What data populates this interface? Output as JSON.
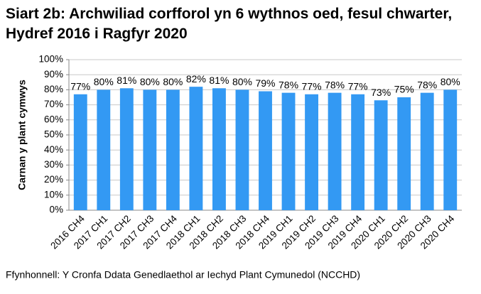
{
  "chart_data": {
    "type": "bar",
    "title": "Siart 2b: Archwiliad corfforol yn 6 wythnos oed, fesul chwarter, Hydref 2016 i Ragfyr 2020",
    "y_label": "Carnan y plant cymwys",
    "source": "Ffynhonnell: Y Cronfa Ddata Genedlaethol ar Iechyd Plant Cymunedol (NCCHD)",
    "categories": [
      "2016 CH4",
      "2017 CH1",
      "2017 CH2",
      "2017 CH3",
      "2017 CH4",
      "2018 CH1",
      "2018 CH2",
      "2018 CH3",
      "2018 CH4",
      "2019 CH1",
      "2019 CH2",
      "2019 CH3",
      "2019 CH4",
      "2020 CH1",
      "2020 CH2",
      "2020 CH3",
      "2020 CH4"
    ],
    "values": [
      77,
      80,
      81,
      80,
      80,
      82,
      81,
      80,
      79,
      78,
      77,
      78,
      77,
      73,
      75,
      78,
      80
    ],
    "value_labels": [
      "77%",
      "80%",
      "81%",
      "80%",
      "80%",
      "82%",
      "81%",
      "80%",
      "79%",
      "78%",
      "77%",
      "78%",
      "77%",
      "73%",
      "75%",
      "78%",
      "80%"
    ],
    "color": "#3399f3",
    "ylim": [
      0,
      100
    ],
    "yticks": [
      {
        "value": 0,
        "label": "0%"
      },
      {
        "value": 10,
        "label": "10%"
      },
      {
        "value": 20,
        "label": "20%"
      },
      {
        "value": 30,
        "label": "30%"
      },
      {
        "value": 40,
        "label": "40%"
      },
      {
        "value": 50,
        "label": "50%"
      },
      {
        "value": 60,
        "label": "60%"
      },
      {
        "value": 70,
        "label": "70%"
      },
      {
        "value": 80,
        "label": "80%"
      },
      {
        "value": 90,
        "label": "90%"
      },
      {
        "value": 100,
        "label": "100%"
      }
    ],
    "grid": true
  }
}
